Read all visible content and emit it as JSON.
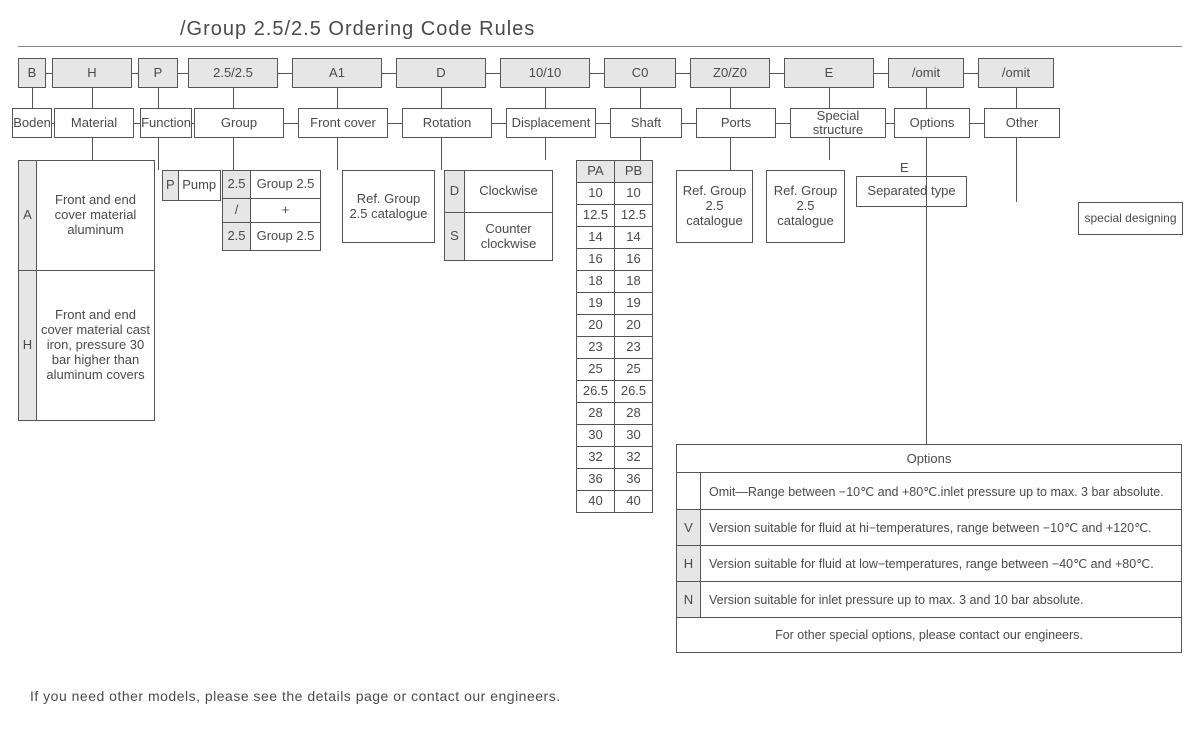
{
  "title": "/Group 2.5/2.5 Ordering Code Rules",
  "colors": {
    "text": "#4a4a4a",
    "border": "#555555",
    "shaded_bg": "#e6e6e6",
    "background": "#ffffff"
  },
  "columns": [
    {
      "code": "B",
      "label": "Boden",
      "code_w": 28,
      "label_w": 40,
      "gap": 6
    },
    {
      "code": "H",
      "label": "Material",
      "code_w": 80,
      "label_w": 80,
      "gap": 6
    },
    {
      "code": "P",
      "label": "Function",
      "code_w": 40,
      "label_w": 52,
      "gap": 10
    },
    {
      "code": "2.5/2.5",
      "label": "Group",
      "code_w": 90,
      "label_w": 90,
      "gap": 14
    },
    {
      "code": "A1",
      "label": "Front cover",
      "code_w": 90,
      "label_w": 90,
      "gap": 14
    },
    {
      "code": "D",
      "label": "Rotation",
      "code_w": 90,
      "label_w": 90,
      "gap": 14
    },
    {
      "code": "10/10",
      "label": "Displacement",
      "code_w": 90,
      "label_w": 90,
      "gap": 14
    },
    {
      "code": "C0",
      "label": "Shaft",
      "code_w": 72,
      "label_w": 72,
      "gap": 14
    },
    {
      "code": "Z0/Z0",
      "label": "Ports",
      "code_w": 80,
      "label_w": 80,
      "gap": 14
    },
    {
      "code": "E",
      "label": "Special structure",
      "code_w": 90,
      "label_w": 96,
      "gap": 14
    },
    {
      "code": "/omit",
      "label": "Options",
      "code_w": 76,
      "label_w": 76,
      "gap": 14
    },
    {
      "code": "/omit",
      "label": "Other",
      "code_w": 76,
      "label_w": 76,
      "gap": 0
    }
  ],
  "material": {
    "rows": [
      {
        "key": "A",
        "text": "Front and end cover material aluminum"
      },
      {
        "key": "H",
        "text": "Front and end cover material cast iron, pressure 30 bar higher than aluminum covers"
      }
    ]
  },
  "function": {
    "key": "P",
    "text": "Pump"
  },
  "group": {
    "cells": [
      [
        "2.5",
        "Group 2.5"
      ],
      [
        "/",
        "+"
      ],
      [
        "2.5",
        "Group 2.5"
      ]
    ]
  },
  "front_cover": {
    "text": "Ref. Group 2.5 catalogue"
  },
  "rotation": {
    "rows": [
      {
        "key": "D",
        "text": "Clockwise"
      },
      {
        "key": "S",
        "text": "Counter clockwise"
      }
    ]
  },
  "displacement": {
    "headers": [
      "PA",
      "PB"
    ],
    "rows": [
      [
        "10",
        "10"
      ],
      [
        "12.5",
        "12.5"
      ],
      [
        "14",
        "14"
      ],
      [
        "16",
        "16"
      ],
      [
        "18",
        "18"
      ],
      [
        "19",
        "19"
      ],
      [
        "20",
        "20"
      ],
      [
        "23",
        "23"
      ],
      [
        "25",
        "25"
      ],
      [
        "26.5",
        "26.5"
      ],
      [
        "28",
        "28"
      ],
      [
        "30",
        "30"
      ],
      [
        "32",
        "32"
      ],
      [
        "36",
        "36"
      ],
      [
        "40",
        "40"
      ]
    ]
  },
  "shaft": {
    "text": "Ref. Group 2.5 catalogue"
  },
  "ports": {
    "text": "Ref. Group 2.5 catalogue"
  },
  "special": {
    "key": "E",
    "text": "Separated type"
  },
  "other": {
    "text": "special designing"
  },
  "options_box": {
    "title": "Options",
    "rows": [
      {
        "key": "",
        "text": "Omit—Range between −10℃ and +80℃.inlet pressure up to max. 3 bar absolute."
      },
      {
        "key": "V",
        "text": "Version suitable for fluid at hi−temperatures, range between −10℃ and +120℃."
      },
      {
        "key": "H",
        "text": "Version suitable for fluid at low−temperatures, range between −40℃ and +80℃."
      },
      {
        "key": "N",
        "text": "Version suitable for inlet pressure up to max. 3 and 10 bar absolute."
      }
    ],
    "footer": "For other special options, please contact our engineers."
  },
  "footer": "If you need other models, please see the details page or contact our engineers."
}
